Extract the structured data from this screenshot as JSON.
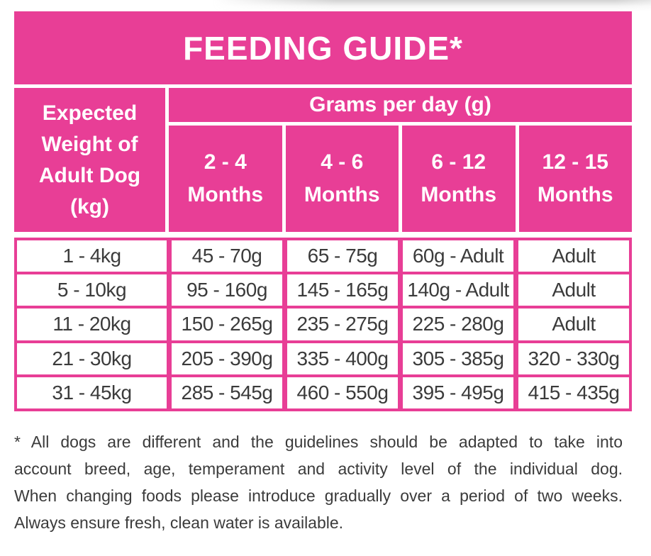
{
  "title": "FEEDING GUIDE*",
  "colors": {
    "pink": "#e83e96",
    "text": "#3b3b3b",
    "cell_bg": "#ffffff"
  },
  "table": {
    "weight_header_lines": [
      "Expected",
      "Weight of",
      "Adult Dog",
      "(kg)"
    ],
    "grams_header": "Grams per day (g)",
    "age_columns": [
      {
        "range": "2 - 4",
        "unit": "Months"
      },
      {
        "range": "4 - 6",
        "unit": "Months"
      },
      {
        "range": "6 - 12",
        "unit": "Months"
      },
      {
        "range": "12 - 15",
        "unit": "Months"
      }
    ],
    "rows": [
      {
        "weight": "1 - 4kg",
        "values": [
          "45 - 70g",
          "65 - 75g",
          "60g - Adult",
          "Adult"
        ]
      },
      {
        "weight": "5 - 10kg",
        "values": [
          "95 - 160g",
          "145 - 165g",
          "140g - Adult",
          "Adult"
        ]
      },
      {
        "weight": "11 - 20kg",
        "values": [
          "150 - 265g",
          "235 - 275g",
          "225 - 280g",
          "Adult"
        ]
      },
      {
        "weight": "21 - 30kg",
        "values": [
          "205 - 390g",
          "335 - 400g",
          "305 - 385g",
          "320 - 330g"
        ]
      },
      {
        "weight": "31 - 45kg",
        "values": [
          "285 - 545g",
          "460 - 550g",
          "395 - 495g",
          "415 - 435g"
        ]
      }
    ]
  },
  "footnote": {
    "lines": [
      "* All dogs are different and the guidelines should be adapted to take into",
      "account breed, age, temperament and activity level of the individual dog.",
      "When changing foods please introduce gradually over a period of two weeks.",
      "Always ensure fresh, clean water is available."
    ]
  }
}
